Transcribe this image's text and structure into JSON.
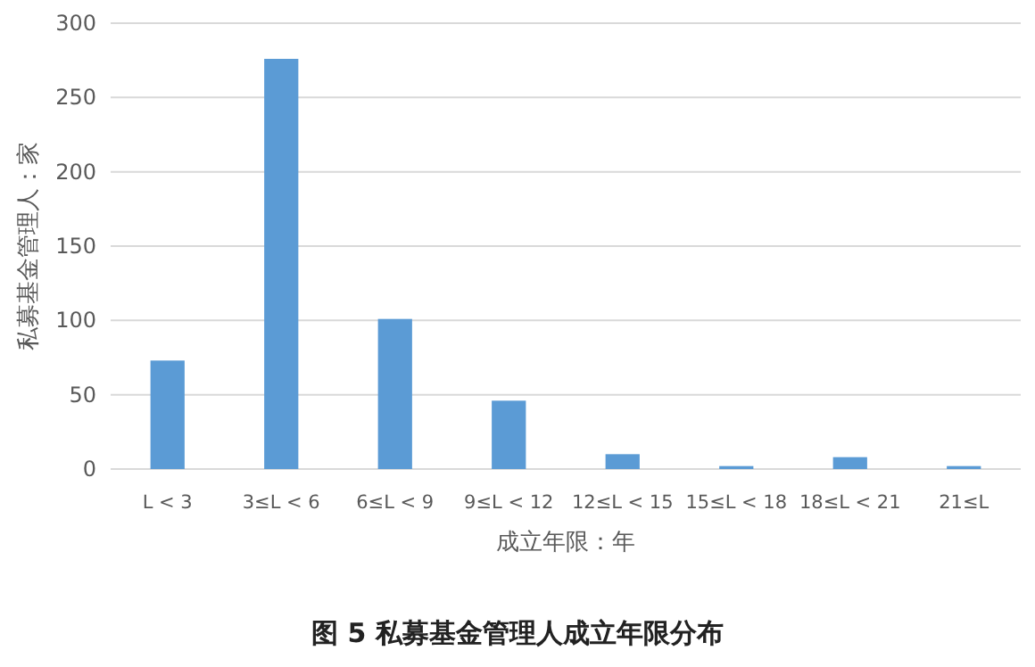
{
  "chart_data": {
    "type": "bar",
    "title": "图 5 私募基金管理人成立年限分布",
    "xlabel": "成立年限：年",
    "ylabel": "私募基金管理人：家",
    "categories": [
      "L < 3",
      "3≤L < 6",
      "6≤L < 9",
      "9≤L < 12",
      "12≤L < 15",
      "15≤L < 18",
      "18≤L < 21",
      "21≤L"
    ],
    "values": [
      73,
      276,
      101,
      46,
      10,
      2,
      8,
      2
    ],
    "color": "#5b9bd5",
    "ylim": [
      0,
      300
    ],
    "yticks": [
      0,
      50,
      100,
      150,
      200,
      250,
      300
    ],
    "grid": "y"
  }
}
